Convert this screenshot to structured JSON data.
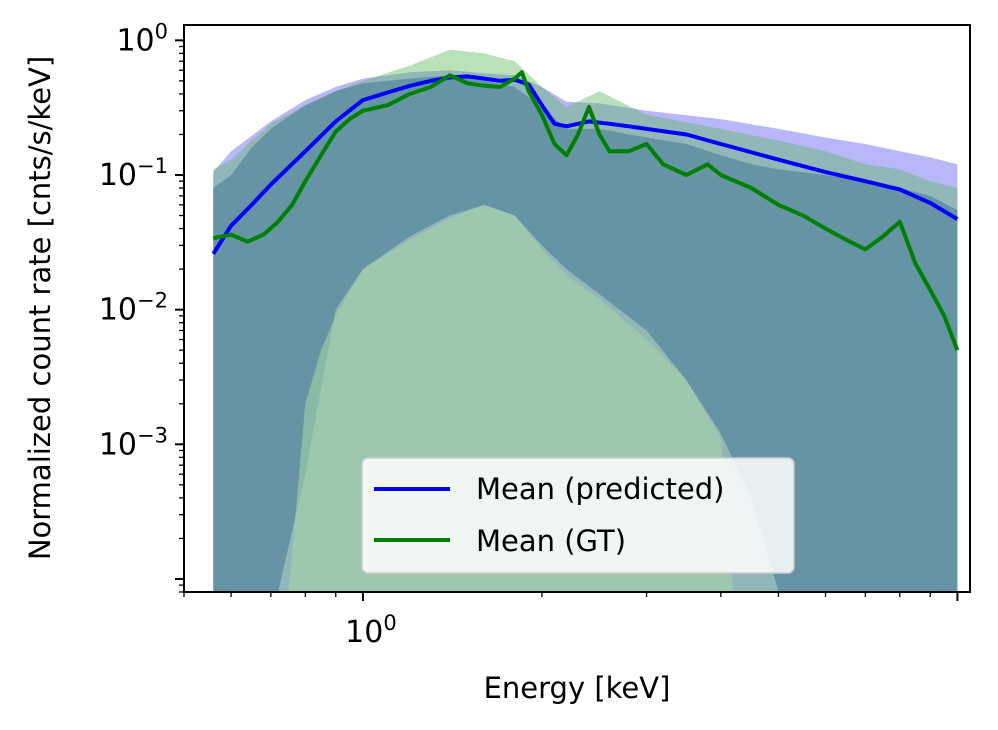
{
  "chart_data": {
    "type": "line",
    "xlabel": "Energy [keV]",
    "ylabel": "Normalized count rate [cnts/s/keV]",
    "xscale": "log",
    "yscale": "log",
    "xlim": [
      0.5,
      10.5
    ],
    "ylim": [
      8e-05,
      1.3
    ],
    "x_major_ticks": [
      {
        "value": 1,
        "base": "10",
        "exp": "0"
      }
    ],
    "y_major_ticks": [
      {
        "value": 1,
        "base": "10",
        "exp": "0"
      },
      {
        "value": 0.1,
        "base": "10",
        "exp": "−1"
      },
      {
        "value": 0.01,
        "base": "10",
        "exp": "−2"
      },
      {
        "value": 0.001,
        "base": "10",
        "exp": "−3"
      }
    ],
    "legend": {
      "placement": "lower-center"
    },
    "series": [
      {
        "name": "Mean (predicted)",
        "color": "#0000ff",
        "x": [
          0.56,
          0.6,
          0.65,
          0.7,
          0.8,
          0.9,
          1.0,
          1.1,
          1.2,
          1.3,
          1.4,
          1.5,
          1.6,
          1.7,
          1.8,
          1.9,
          2.0,
          2.1,
          2.2,
          2.3,
          2.4,
          2.6,
          2.8,
          3.0,
          3.5,
          4.0,
          5.0,
          6.0,
          7.0,
          8.0,
          9.0,
          10.0
        ],
        "y": [
          0.026,
          0.042,
          0.06,
          0.085,
          0.15,
          0.25,
          0.36,
          0.41,
          0.46,
          0.5,
          0.53,
          0.54,
          0.52,
          0.5,
          0.51,
          0.47,
          0.33,
          0.24,
          0.23,
          0.24,
          0.25,
          0.24,
          0.23,
          0.22,
          0.2,
          0.17,
          0.13,
          0.105,
          0.09,
          0.078,
          0.062,
          0.047
        ]
      },
      {
        "name": "Mean (GT)",
        "color": "#008000",
        "x": [
          0.56,
          0.6,
          0.64,
          0.68,
          0.72,
          0.76,
          0.8,
          0.85,
          0.9,
          0.95,
          1.0,
          1.1,
          1.2,
          1.3,
          1.4,
          1.5,
          1.6,
          1.7,
          1.8,
          1.85,
          1.9,
          2.0,
          2.1,
          2.2,
          2.3,
          2.4,
          2.5,
          2.6,
          2.8,
          3.0,
          3.2,
          3.5,
          3.8,
          4.0,
          4.5,
          5.0,
          5.5,
          6.0,
          6.5,
          7.0,
          7.5,
          8.0,
          8.5,
          9.0,
          9.5,
          10.0
        ],
        "y": [
          0.034,
          0.036,
          0.032,
          0.036,
          0.045,
          0.06,
          0.09,
          0.14,
          0.21,
          0.26,
          0.3,
          0.33,
          0.4,
          0.45,
          0.55,
          0.48,
          0.46,
          0.45,
          0.52,
          0.58,
          0.42,
          0.28,
          0.17,
          0.14,
          0.2,
          0.32,
          0.2,
          0.15,
          0.15,
          0.17,
          0.12,
          0.1,
          0.12,
          0.1,
          0.08,
          0.06,
          0.05,
          0.04,
          0.033,
          0.028,
          0.035,
          0.045,
          0.022,
          0.014,
          0.009,
          0.005
        ]
      }
    ],
    "bands": [
      {
        "name": "predicted-spread",
        "color": "#6f6ff5",
        "opacity": 0.5,
        "x": [
          0.56,
          0.6,
          0.7,
          0.8,
          0.9,
          1.0,
          1.2,
          1.4,
          1.6,
          1.8,
          2.0,
          2.2,
          2.5,
          3.0,
          4.0,
          5.0,
          6.0,
          7.0,
          8.0,
          9.0,
          10.0
        ],
        "upper": [
          0.105,
          0.15,
          0.25,
          0.36,
          0.45,
          0.52,
          0.58,
          0.6,
          0.57,
          0.55,
          0.45,
          0.35,
          0.34,
          0.3,
          0.26,
          0.22,
          0.19,
          0.17,
          0.15,
          0.135,
          0.12
        ],
        "lower": [
          8e-05,
          8e-05,
          8e-05,
          8e-05,
          8e-05,
          8e-05,
          8e-05,
          8e-05,
          8e-05,
          8e-05,
          8e-05,
          8e-05,
          8e-05,
          8e-05,
          8e-05,
          8e-05,
          8e-05,
          8e-05,
          8e-05,
          8e-05,
          8e-05
        ]
      },
      {
        "name": "gt-spread",
        "color": "#5cb85c",
        "opacity": 0.42,
        "x": [
          0.56,
          0.6,
          0.65,
          0.7,
          0.8,
          0.9,
          1.0,
          1.2,
          1.4,
          1.6,
          1.8,
          2.0,
          2.2,
          2.5,
          3.0,
          4.0,
          5.0,
          6.0,
          7.0,
          8.0,
          9.0,
          10.0
        ],
        "upper": [
          0.11,
          0.13,
          0.18,
          0.24,
          0.33,
          0.42,
          0.5,
          0.65,
          0.85,
          0.8,
          0.7,
          0.45,
          0.32,
          0.42,
          0.28,
          0.22,
          0.18,
          0.15,
          0.12,
          0.11,
          0.09,
          0.08
        ],
        "lower": [
          8e-05,
          8e-05,
          8e-05,
          8e-05,
          8e-05,
          8e-05,
          8e-05,
          8e-05,
          8e-05,
          8e-05,
          8e-05,
          8e-05,
          8e-05,
          8e-05,
          8e-05,
          8e-05,
          8e-05,
          8e-05,
          8e-05,
          8e-05,
          8e-05,
          8e-05
        ]
      },
      {
        "name": "overlap-core",
        "color": "#5d8fa0",
        "opacity": 0.85,
        "x": [
          0.56,
          0.6,
          0.65,
          0.7,
          0.72,
          0.8,
          0.9,
          1.0,
          1.2,
          1.4,
          1.6,
          1.8,
          2.0,
          2.2,
          2.5,
          3.0,
          3.5,
          4.0,
          4.5,
          5.0,
          6.0,
          7.0,
          8.0,
          9.0,
          10.0
        ],
        "upper": [
          0.08,
          0.1,
          0.16,
          0.22,
          0.24,
          0.33,
          0.42,
          0.48,
          0.52,
          0.55,
          0.5,
          0.45,
          0.32,
          0.22,
          0.22,
          0.19,
          0.17,
          0.14,
          0.12,
          0.11,
          0.1,
          0.09,
          0.08,
          0.07,
          0.055
        ],
        "lower": [
          8e-05,
          8e-05,
          8e-05,
          8e-05,
          8e-05,
          0.0006,
          0.01,
          0.02,
          0.035,
          0.05,
          0.06,
          0.05,
          0.03,
          0.02,
          0.013,
          0.007,
          0.003,
          0.0012,
          0.0004,
          8e-05,
          8e-05,
          8e-05,
          8e-05,
          8e-05,
          8e-05
        ]
      },
      {
        "name": "gt-inner-green",
        "color": "#a6d8a6",
        "opacity": 0.55,
        "x": [
          0.72,
          0.75,
          0.8,
          0.85,
          0.9,
          1.0,
          1.2,
          1.4,
          1.6,
          1.8,
          2.0,
          2.2,
          2.5,
          3.0,
          3.5,
          4.0,
          4.2
        ],
        "upper": [
          8e-05,
          8e-05,
          0.002,
          0.005,
          0.009,
          0.02,
          0.033,
          0.048,
          0.06,
          0.05,
          0.028,
          0.018,
          0.012,
          0.006,
          0.003,
          0.0011,
          8e-05
        ],
        "lower": [
          8e-05,
          8e-05,
          8e-05,
          8e-05,
          8e-05,
          8e-05,
          8e-05,
          8e-05,
          8e-05,
          8e-05,
          8e-05,
          8e-05,
          8e-05,
          8e-05,
          8e-05,
          8e-05,
          8e-05
        ]
      }
    ],
    "legend_entries": [
      "Mean (predicted)",
      "Mean (GT)"
    ]
  }
}
